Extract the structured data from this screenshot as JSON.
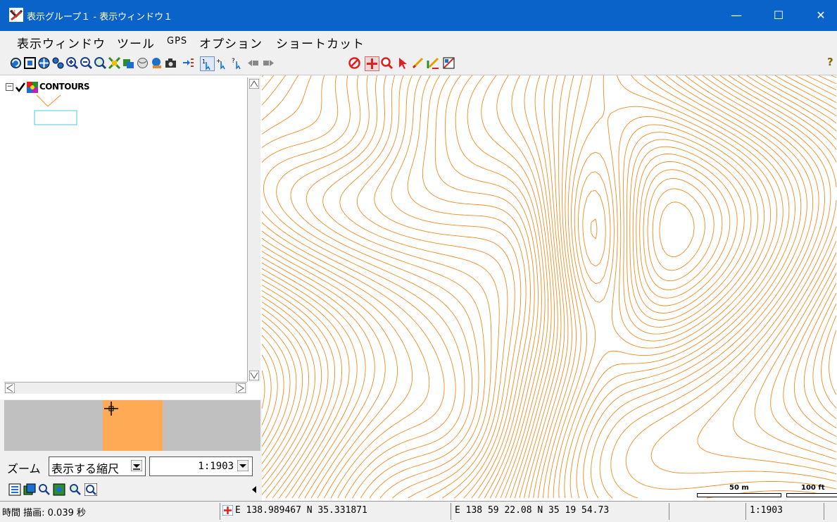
{
  "window": {
    "title": "表示グループ１ - 表示ウィンドウ１",
    "controls": {
      "minimize": "—",
      "maximize": "☐",
      "close": "✕"
    }
  },
  "menu": {
    "items": [
      "表示ウィンドウ",
      "ツール",
      "GPS",
      "オプション",
      "ショートカット"
    ]
  },
  "toolbar": {
    "help_label": "?",
    "icons": [
      "redraw-icon",
      "full-view-icon",
      "pan-icon",
      "previous-view-icon",
      "zoom-in-icon",
      "zoom-out-icon",
      "zoom-box-icon",
      "extents-icon",
      "layer-icon",
      "globe-icon",
      "3d-icon",
      "camera-icon",
      "insert-icon",
      "select-one-icon",
      "select-multi-icon",
      "query-icon",
      "back-icon",
      "forward-icon",
      "cancel-icon",
      "position-icon",
      "zoom-tool-icon",
      "pointer-icon",
      "measure-icon",
      "sketch-icon",
      "legend-icon"
    ]
  },
  "layers": [
    {
      "name": "CONTOURS",
      "checked": true
    }
  ],
  "zoom": {
    "label": "ズーム",
    "mode": "表示する縮尺",
    "scale": "1:1903"
  },
  "scalebar": {
    "metric": "50 m",
    "imperial": "100 ft"
  },
  "colors": {
    "titlebar": "#0a63c9",
    "contour": "#f08a20",
    "overview_extent": "#ffaa55",
    "legend_box": "#48c8e8"
  },
  "status": {
    "timing": "時間 描画: 0.039 秒",
    "decimal_coords": "E 138.989467  N 35.331871",
    "dms_coords": "E 138 59 22.08  N 35 19 54.73",
    "scale": "1:1903"
  }
}
